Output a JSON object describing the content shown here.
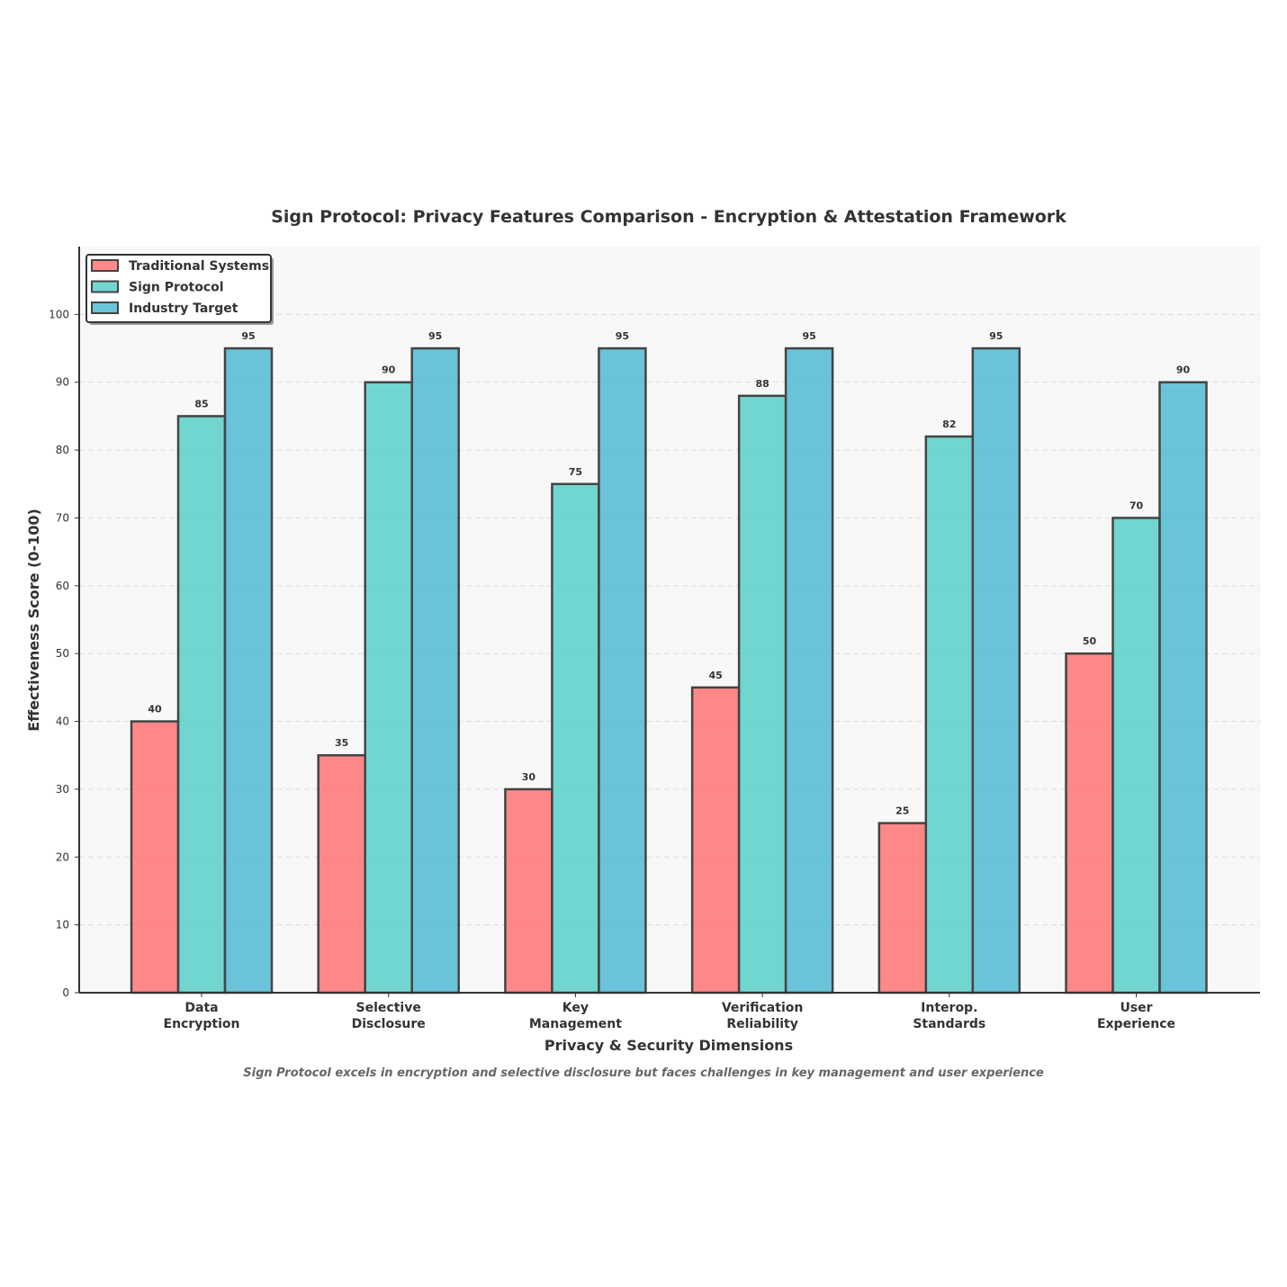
{
  "chart_data": {
    "type": "bar",
    "title": "Sign Protocol: Privacy Features Comparison - Encryption & Attestation Framework",
    "xlabel": "Privacy & Security Dimensions",
    "ylabel": "Effectiveness Score (0-100)",
    "ylim": [
      0,
      110
    ],
    "yticks": [
      0,
      10,
      20,
      30,
      40,
      50,
      60,
      70,
      80,
      90,
      100
    ],
    "grid": true,
    "legend_position": "top-left",
    "categories": [
      [
        "Data",
        "Encryption"
      ],
      [
        "Selective",
        "Disclosure"
      ],
      [
        "Key",
        "Management"
      ],
      [
        "Verification",
        "Reliability"
      ],
      [
        "Interop.",
        "Standards"
      ],
      [
        "User",
        "Experience"
      ]
    ],
    "series": [
      {
        "name": "Traditional Systems",
        "color": "#ff6b6b",
        "values": [
          40,
          35,
          30,
          45,
          25,
          50
        ]
      },
      {
        "name": "Sign Protocol",
        "color": "#4ecdc4",
        "values": [
          85,
          90,
          75,
          88,
          82,
          70
        ]
      },
      {
        "name": "Industry Target",
        "color": "#45b7d1",
        "values": [
          95,
          95,
          95,
          95,
          95,
          90
        ]
      }
    ],
    "caption": "Sign Protocol excels in encryption and selective disclosure but faces challenges in key management and user experience"
  }
}
